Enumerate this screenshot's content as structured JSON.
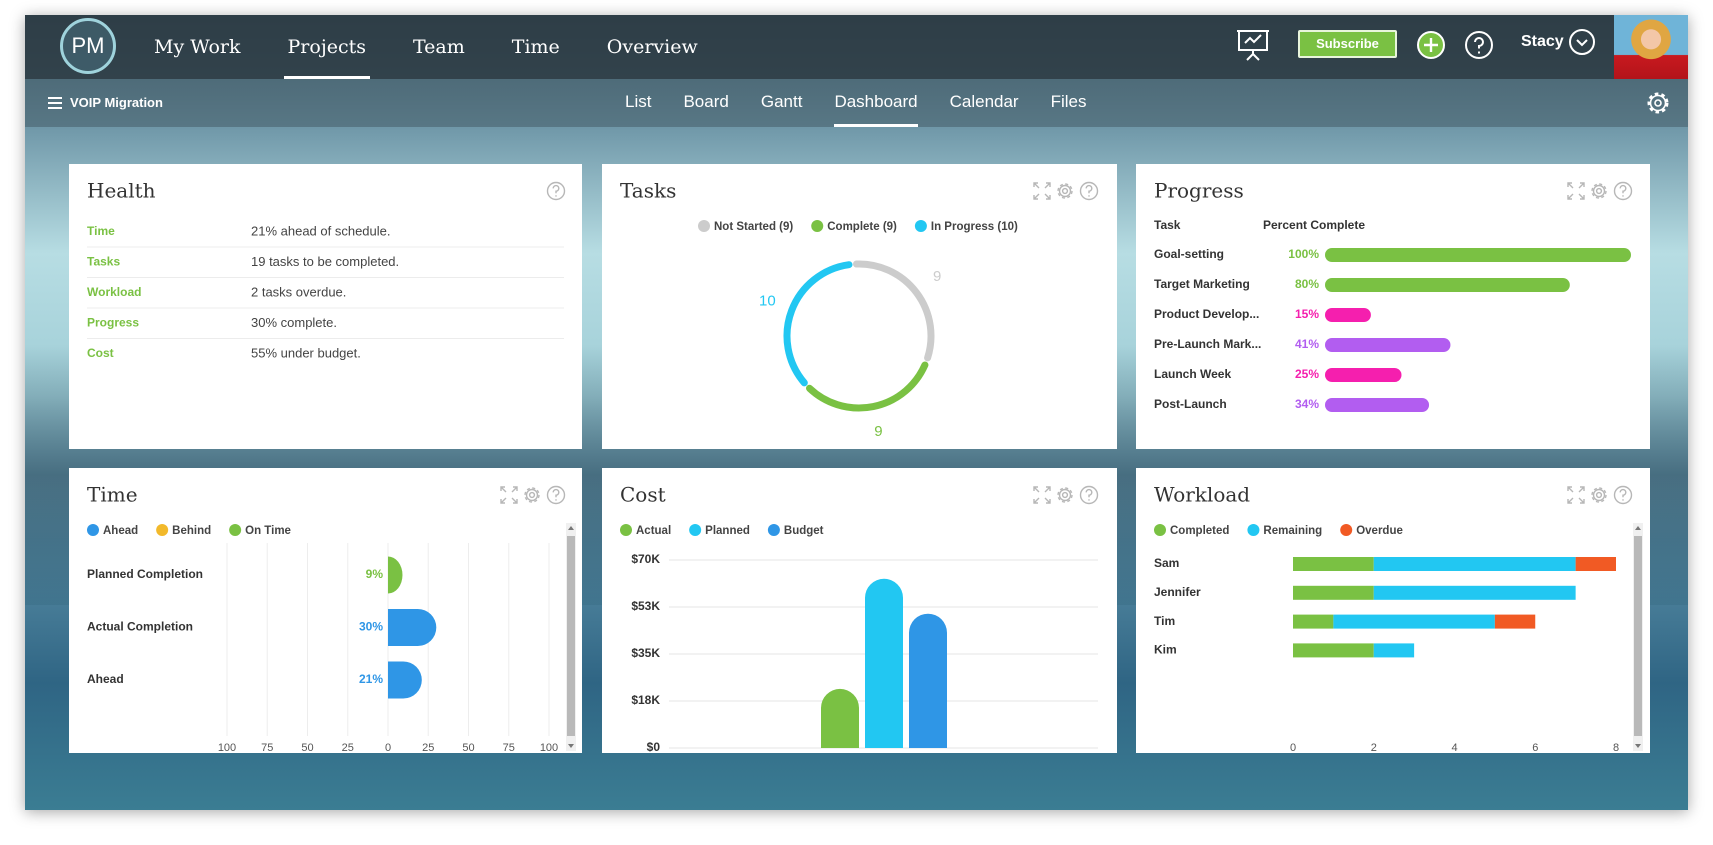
{
  "nav": {
    "logo": "PM",
    "items": [
      "My Work",
      "Projects",
      "Team",
      "Time",
      "Overview"
    ],
    "active": 1,
    "subscribe": "Subscribe",
    "user": "Stacy"
  },
  "subnav": {
    "project": "VOIP Migration",
    "tabs": [
      "List",
      "Board",
      "Gantt",
      "Dashboard",
      "Calendar",
      "Files"
    ],
    "active": 3
  },
  "health": {
    "title": "Health",
    "rows": [
      {
        "label": "Time",
        "text": "21% ahead of schedule."
      },
      {
        "label": "Tasks",
        "text": "19 tasks to be completed."
      },
      {
        "label": "Workload",
        "text": "2 tasks overdue."
      },
      {
        "label": "Progress",
        "text": "30% complete."
      },
      {
        "label": "Cost",
        "text": "55% under budget."
      }
    ]
  },
  "tasks": {
    "title": "Tasks",
    "type": "donut",
    "series": [
      {
        "name": "Not Started (9)",
        "value": 9,
        "color": "#cccccc"
      },
      {
        "name": "Complete (9)",
        "value": 9,
        "color": "#7ac143"
      },
      {
        "name": "In Progress (10)",
        "value": 10,
        "color": "#22c7f2"
      }
    ]
  },
  "progress": {
    "title": "Progress",
    "type": "hbar",
    "headers": [
      "Task",
      "Percent Complete"
    ],
    "categories": [
      "Goal-setting",
      "Target Marketing",
      "Product Develop...",
      "Pre-Launch Mark...",
      "Launch Week",
      "Post-Launch"
    ],
    "values": [
      100,
      80,
      15,
      41,
      25,
      34
    ],
    "value_labels": [
      "100%",
      "80%",
      "15%",
      "41%",
      "25%",
      "34%"
    ],
    "colors": [
      "#7ac143",
      "#7ac143",
      "#f51fae",
      "#b25df0",
      "#f51fae",
      "#b25df0"
    ],
    "xlim": [
      0,
      100
    ]
  },
  "time": {
    "title": "Time",
    "type": "hbar",
    "legend": [
      {
        "name": "Ahead",
        "color": "#2f96e6"
      },
      {
        "name": "Behind",
        "color": "#f2b92b"
      },
      {
        "name": "On Time",
        "color": "#7ac143"
      }
    ],
    "categories": [
      "Planned Completion",
      "Actual Completion",
      "Ahead"
    ],
    "values": [
      9,
      30,
      21
    ],
    "value_labels": [
      "9%",
      "30%",
      "21%"
    ],
    "colors": [
      "#7ac143",
      "#2f96e6",
      "#2f96e6"
    ],
    "xlim": [
      -100,
      100
    ],
    "xticks": [
      {
        "value": -100,
        "label": "100"
      },
      {
        "value": -75,
        "label": "75"
      },
      {
        "value": -50,
        "label": "50"
      },
      {
        "value": -25,
        "label": "25"
      },
      0,
      25,
      50,
      75,
      100
    ],
    "grid": true
  },
  "cost": {
    "title": "Cost",
    "type": "bar",
    "series": [
      {
        "name": "Actual",
        "color": "#7ac143",
        "values": [
          22000
        ]
      },
      {
        "name": "Planned",
        "color": "#22c7f2",
        "values": [
          63000
        ]
      },
      {
        "name": "Budget",
        "color": "#2f96e6",
        "values": [
          50000
        ]
      }
    ],
    "ylim": [
      0,
      70000
    ],
    "yticks": [
      {
        "value": 0,
        "label": "$0"
      },
      {
        "value": 17500,
        "label": "$18K"
      },
      {
        "value": 35000,
        "label": "$35K"
      },
      {
        "value": 52500,
        "label": "$53K"
      },
      {
        "value": 70000,
        "label": "$70K"
      }
    ],
    "grid": true
  },
  "workload": {
    "title": "Workload",
    "type": "stacked",
    "categories": [
      "Sam",
      "Jennifer",
      "Tim",
      "Kim"
    ],
    "series": [
      {
        "name": "Completed",
        "color": "#7ac143",
        "values": [
          2,
          2,
          1,
          2
        ]
      },
      {
        "name": "Remaining",
        "color": "#22c7f2",
        "values": [
          5,
          5,
          4,
          1
        ]
      },
      {
        "name": "Overdue",
        "color": "#f15a24",
        "values": [
          1,
          0,
          1,
          0
        ]
      }
    ],
    "xlim": [
      0,
      8
    ],
    "xticks": [
      0,
      2,
      4,
      6,
      8
    ]
  }
}
